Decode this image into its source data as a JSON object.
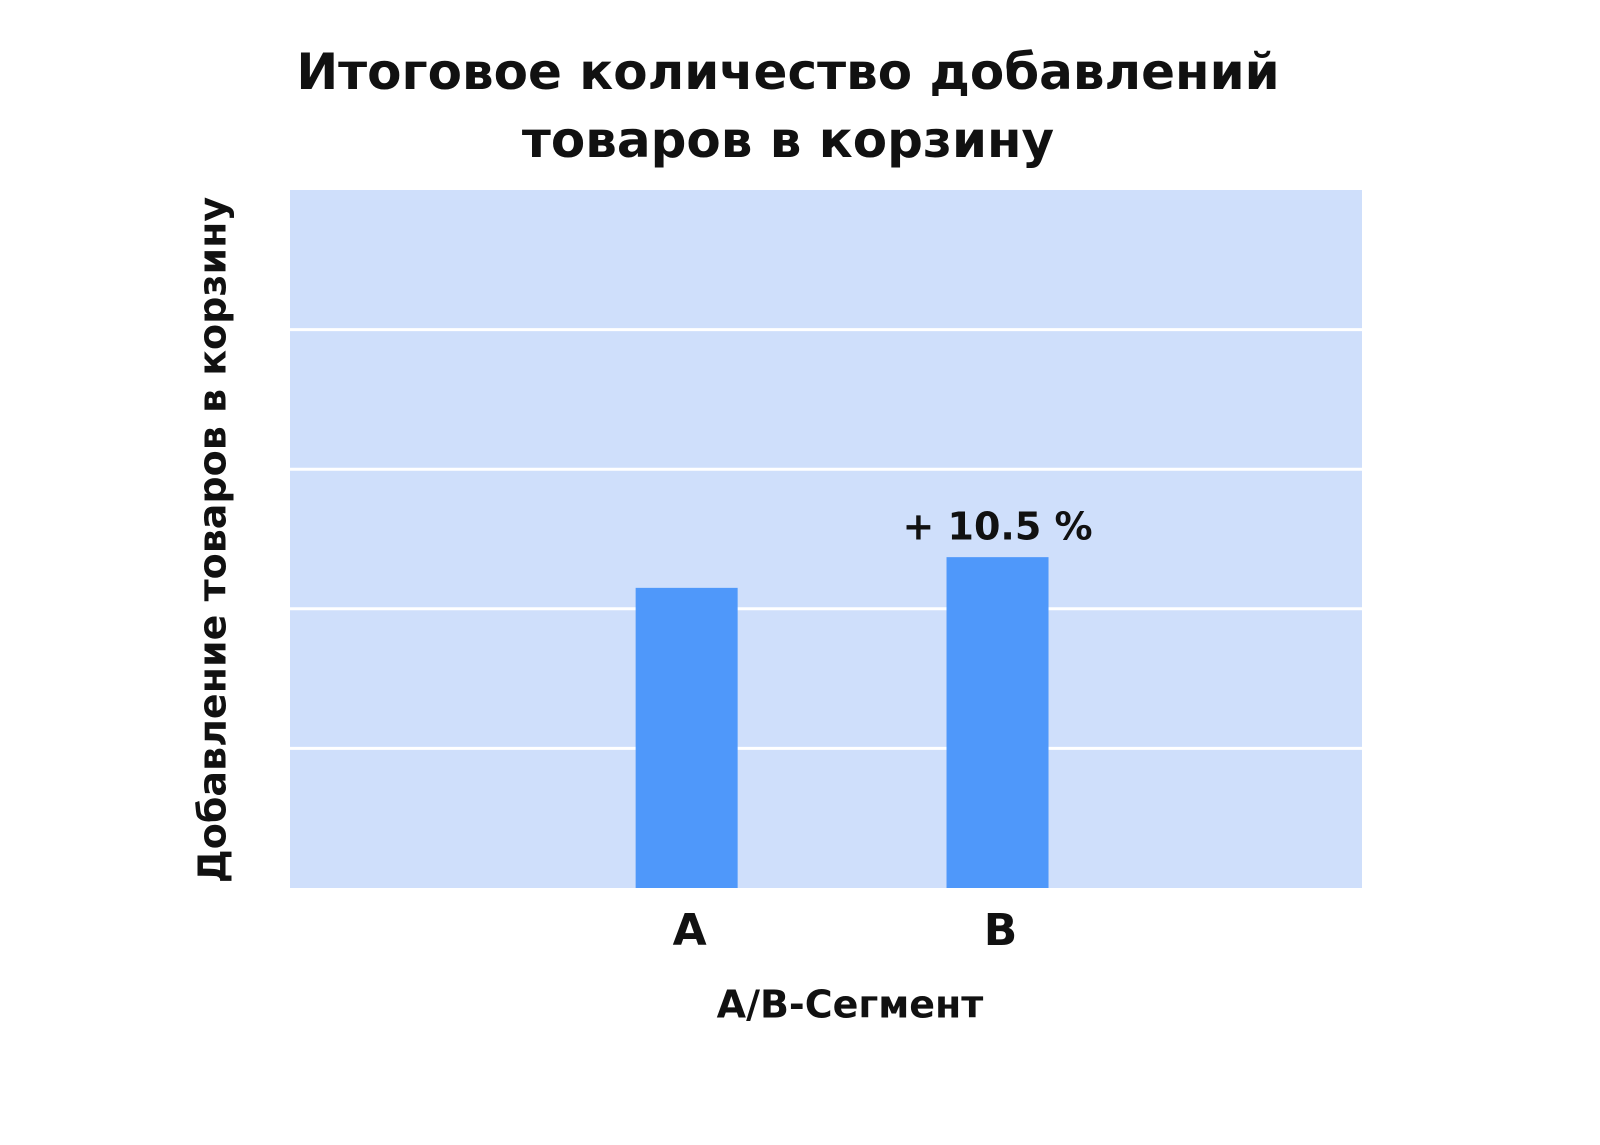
{
  "chart_data": {
    "type": "bar",
    "title": "Итоговое количество добавлений товаров в корзину",
    "xlabel": "A/B-Сегмент",
    "ylabel": "Добавление товаров в корзину",
    "categories": [
      "A",
      "B"
    ],
    "values": [
      2.15,
      2.37
    ],
    "color": "#4f98fa",
    "annotation": "+ 10.5 %",
    "ylim": [
      0,
      5
    ],
    "yticks": [
      1,
      2,
      3,
      4
    ],
    "grid": true
  }
}
